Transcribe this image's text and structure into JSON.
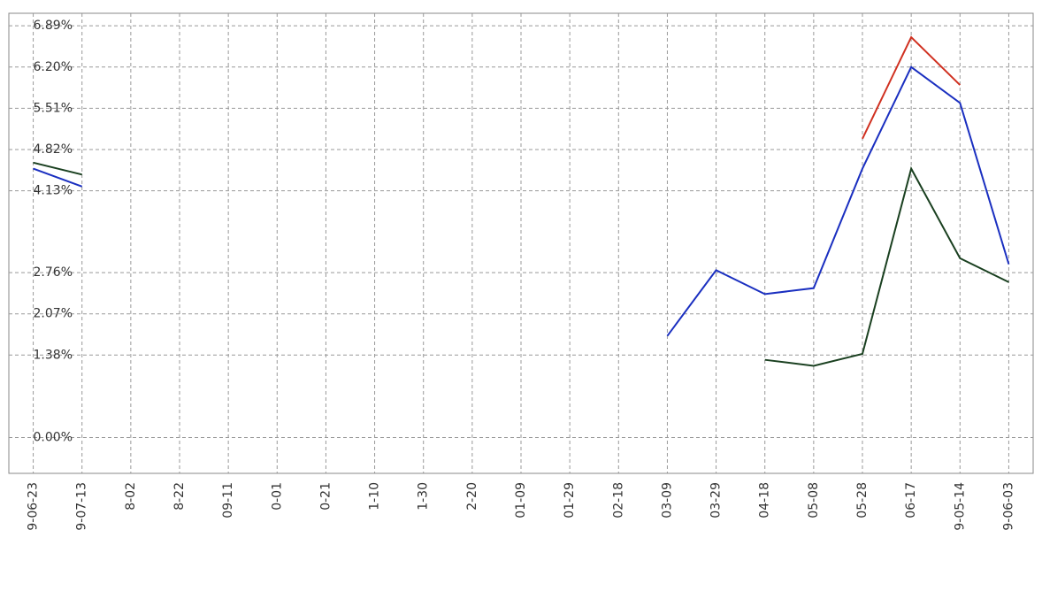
{
  "chart_data": {
    "type": "line",
    "categories": [
      "9-06-23",
      "9-07-13",
      "8-02",
      "8-22",
      "09-11",
      "0-01",
      "0-21",
      "1-10",
      "1-30",
      "2-20",
      "01-09",
      "01-29",
      "02-18",
      "03-09",
      "03-29",
      "04-18",
      "05-08",
      "05-28",
      "06-17",
      "9-05-14",
      "9-06-03"
    ],
    "series": [
      {
        "color": "#d03020",
        "values": [
          null,
          null,
          null,
          null,
          null,
          null,
          null,
          null,
          null,
          null,
          null,
          null,
          null,
          null,
          null,
          null,
          null,
          5.0,
          6.7,
          5.9,
          null
        ]
      },
      {
        "color": "#1a2fc0",
        "values": [
          4.5,
          4.2,
          null,
          null,
          null,
          null,
          null,
          null,
          null,
          null,
          null,
          null,
          null,
          1.7,
          2.8,
          2.4,
          2.5,
          4.5,
          6.2,
          5.6,
          2.9
        ]
      },
      {
        "color": "#1a4020",
        "values": [
          4.6,
          4.4,
          null,
          null,
          null,
          null,
          null,
          null,
          null,
          null,
          null,
          null,
          null,
          null,
          null,
          1.3,
          1.2,
          1.4,
          4.5,
          3.0,
          2.6
        ]
      }
    ],
    "ylim": [
      -0.6,
      7.1
    ],
    "yticks": [
      {
        "value": 0,
        "label": "0.00%"
      },
      {
        "value": 1.38,
        "label": "1.38%"
      },
      {
        "value": 2.07,
        "label": "2.07%"
      },
      {
        "value": 2.76,
        "label": "2.76%"
      },
      {
        "value": 4.13,
        "label": "4.13%"
      },
      {
        "value": 4.82,
        "label": "4.82%"
      },
      {
        "value": 5.51,
        "label": "5.51%"
      },
      {
        "value": 6.2,
        "label": "6.20%"
      },
      {
        "value": 6.89,
        "label": "6.89%"
      }
    ],
    "grid": true
  }
}
